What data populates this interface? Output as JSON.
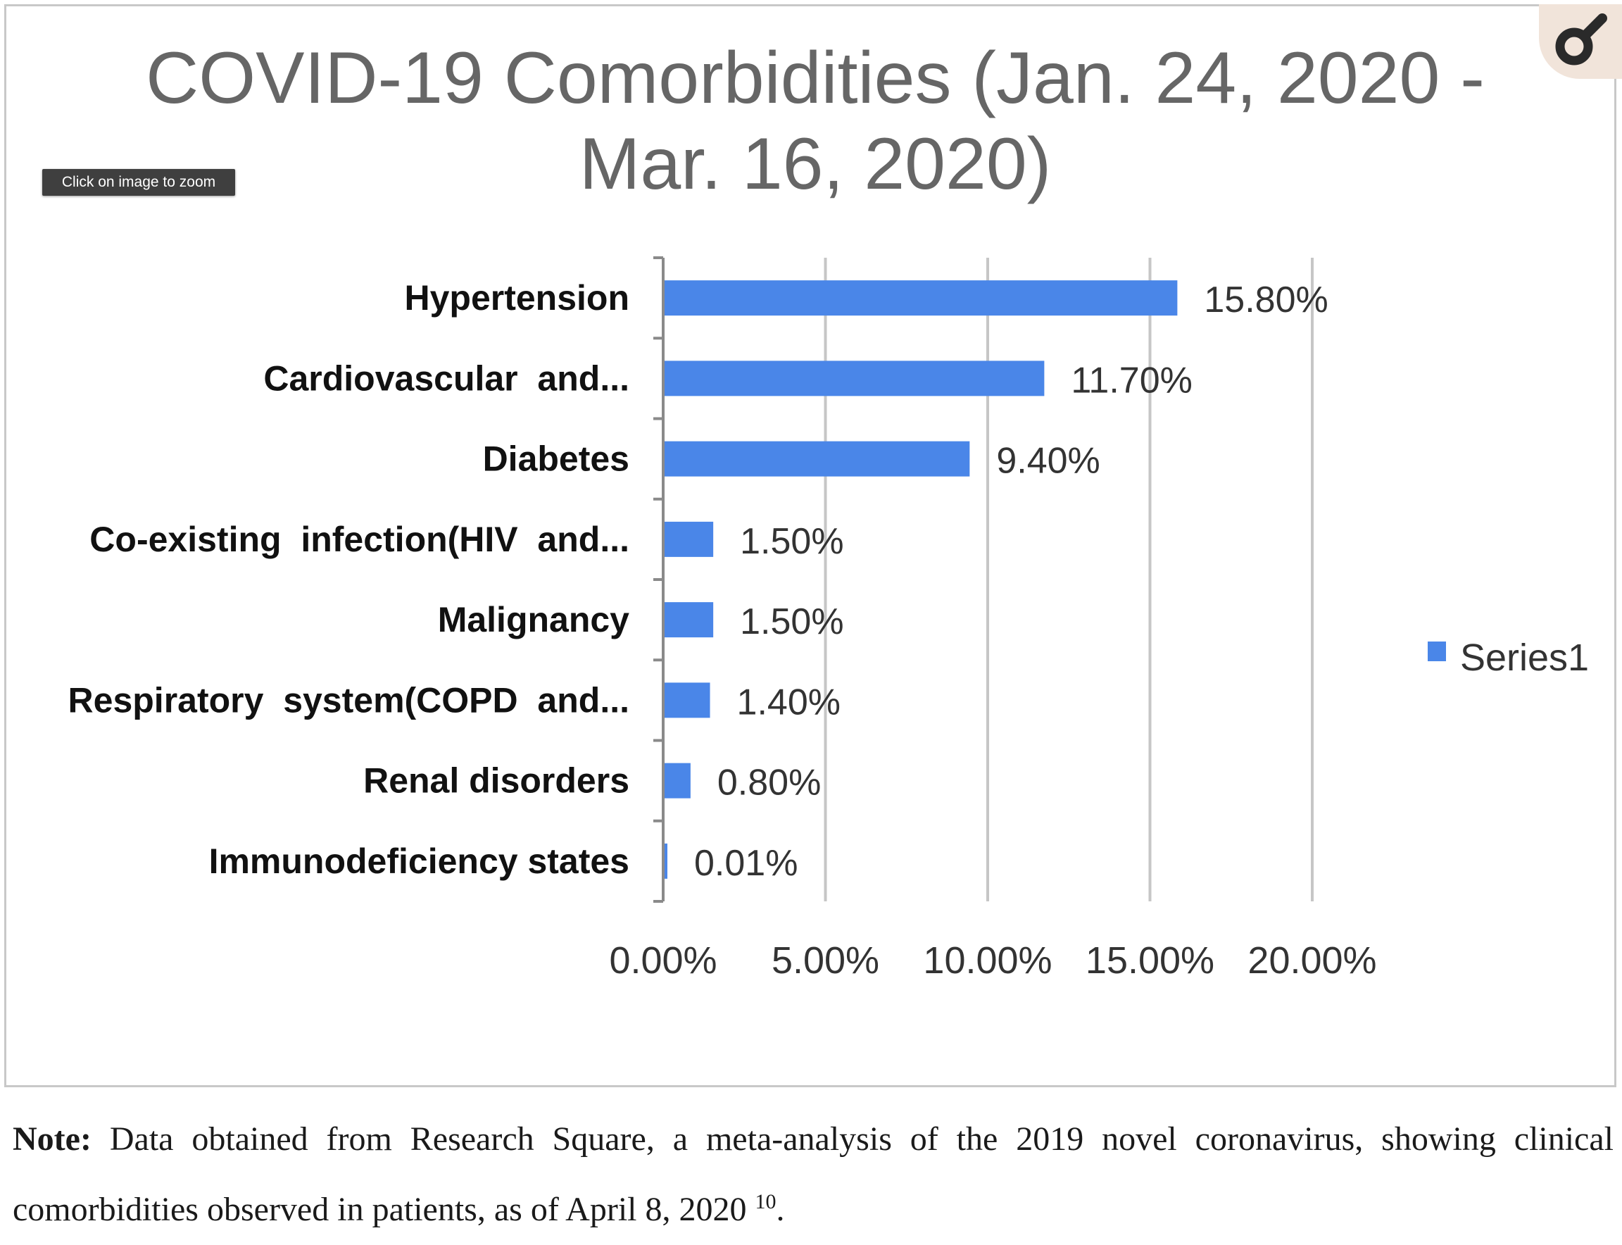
{
  "tooltip": {
    "zoom_hint": "Click on image to zoom"
  },
  "zoom_button": {
    "icon": "magnifier-icon",
    "background": "#f1e4da"
  },
  "note": {
    "label": "Note:",
    "text": "Data obtained from Research Square, a meta-analysis of the 2019 novel coronavirus, showing clinical comorbidities observed in patients, as of April 8, 2020",
    "reference": "10",
    "end": "."
  },
  "chart_data": {
    "type": "bar",
    "orientation": "horizontal",
    "title_lines": [
      "COVID-19 Comorbidities (Jan. 24, 2020 -",
      "Mar. 16, 2020)"
    ],
    "categories": [
      "Hypertension",
      "Cardiovascular  and...",
      "Diabetes",
      "Co-existing  infection(HIV  and...",
      "Malignancy",
      "Respiratory  system(COPD  and...",
      "Renal disorders",
      "Immunodeficiency states"
    ],
    "series": [
      {
        "name": "Series1",
        "color": "#4a86e8",
        "values": [
          15.8,
          11.7,
          9.4,
          1.5,
          1.5,
          1.4,
          0.8,
          0.01
        ]
      }
    ],
    "data_labels": [
      "15.80%",
      "11.70%",
      "9.40%",
      "1.50%",
      "1.50%",
      "1.40%",
      "0.80%",
      "0.01%"
    ],
    "x_ticks": [
      "0.00%",
      "5.00%",
      "10.00%",
      "15.00%",
      "20.00%"
    ],
    "x_tick_values": [
      0,
      5,
      10,
      15,
      20
    ],
    "xlim": [
      0,
      20
    ],
    "grid": "vertical",
    "legend": "right",
    "colors": {
      "bar": "#4a86e8",
      "title": "#666666",
      "tick_label": "#333333",
      "category_label": "#111111",
      "grid": "#c6c6c6",
      "axis": "#8a8a8a"
    }
  }
}
